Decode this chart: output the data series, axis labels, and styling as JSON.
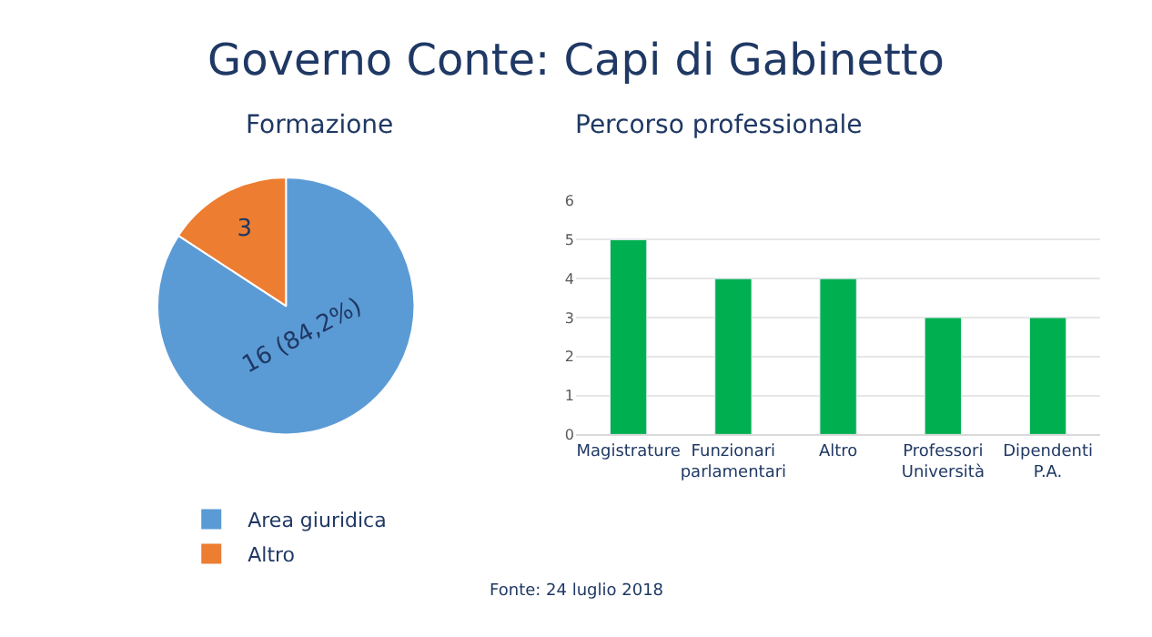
{
  "chart_data": [
    {
      "type": "pie",
      "title": "Formazione",
      "categories": [
        "Area giuridica",
        "Altro"
      ],
      "values": [
        16,
        3
      ],
      "colors": [
        "#5b9bd5",
        "#ed7d31"
      ],
      "value_labels": [
        "16 (84,2%)",
        "3"
      ],
      "legend": "bottom",
      "annotations": [
        "Governo Conte: Capi di Gabinetto",
        "Fonte: 24 luglio 2018"
      ]
    },
    {
      "type": "bar",
      "title": "Percorso professionale",
      "categories": [
        "Magistrature",
        "Funzionari parlamentari",
        "Altro",
        "Professori Università",
        "Dipendenti P.A."
      ],
      "values": [
        5,
        4,
        4,
        3,
        3
      ],
      "color": "#00b050",
      "ylim": [
        0,
        6
      ],
      "yticks": [
        0,
        1,
        2,
        3,
        4,
        5,
        6
      ],
      "grid": "y"
    }
  ]
}
